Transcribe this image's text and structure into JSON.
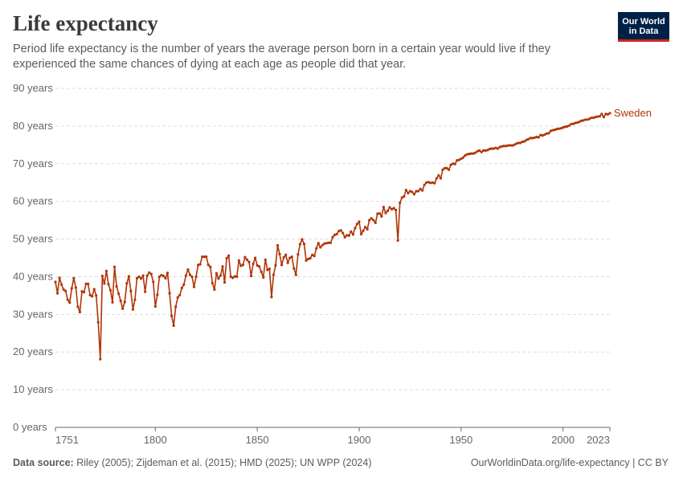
{
  "header": {
    "title": "Life expectancy",
    "subtitle": "Period life expectancy is the number of years the average person born in a certain year would live if they experienced the same chances of dying at each age as people did that year.",
    "logo_line1": "Our World",
    "logo_line2": "in Data"
  },
  "footer": {
    "source_label": "Data source:",
    "source_text": "Riley (2005); Zijdeman et al. (2015); HMD (2025); UN WPP (2024)",
    "url_text": "OurWorldinData.org/life-expectancy | CC BY"
  },
  "colors": {
    "series": "#b13507",
    "grid": "#dddddd",
    "axis": "#666666"
  },
  "chart_data": {
    "type": "line",
    "title": "Life expectancy",
    "xlabel": "",
    "ylabel": "",
    "xlim": [
      1751,
      2023
    ],
    "ylim": [
      0,
      90
    ],
    "x_ticks": [
      1751,
      1800,
      1850,
      1900,
      1950,
      2000,
      2023
    ],
    "y_ticks": [
      {
        "value": 0,
        "label": "0 years"
      },
      {
        "value": 10,
        "label": "10 years"
      },
      {
        "value": 20,
        "label": "20 years"
      },
      {
        "value": 30,
        "label": "30 years"
      },
      {
        "value": 40,
        "label": "40 years"
      },
      {
        "value": 50,
        "label": "50 years"
      },
      {
        "value": 60,
        "label": "60 years"
      },
      {
        "value": 70,
        "label": "70 years"
      },
      {
        "value": 80,
        "label": "80 years"
      },
      {
        "value": 90,
        "label": "90 years"
      }
    ],
    "grid": true,
    "legend": "label at line end",
    "series": [
      {
        "name": "Sweden",
        "points": [
          [
            1751,
            38.6
          ],
          [
            1752,
            35.6
          ],
          [
            1753,
            39.7
          ],
          [
            1754,
            37.9
          ],
          [
            1755,
            36.6
          ],
          [
            1756,
            36.2
          ],
          [
            1757,
            33.9
          ],
          [
            1758,
            33.1
          ],
          [
            1759,
            36.9
          ],
          [
            1760,
            39.6
          ],
          [
            1761,
            37.1
          ],
          [
            1762,
            32.0
          ],
          [
            1763,
            30.6
          ],
          [
            1764,
            36.1
          ],
          [
            1765,
            35.9
          ],
          [
            1766,
            38.1
          ],
          [
            1767,
            38.1
          ],
          [
            1768,
            35.1
          ],
          [
            1769,
            34.8
          ],
          [
            1770,
            36.7
          ],
          [
            1771,
            35.0
          ],
          [
            1772,
            27.9
          ],
          [
            1773,
            18.1
          ],
          [
            1774,
            40.2
          ],
          [
            1775,
            38.2
          ],
          [
            1776,
            41.5
          ],
          [
            1777,
            38.0
          ],
          [
            1778,
            36.4
          ],
          [
            1779,
            33.2
          ],
          [
            1780,
            42.6
          ],
          [
            1781,
            37.4
          ],
          [
            1782,
            35.5
          ],
          [
            1783,
            33.6
          ],
          [
            1784,
            31.5
          ],
          [
            1785,
            33.3
          ],
          [
            1786,
            38.2
          ],
          [
            1787,
            40.1
          ],
          [
            1788,
            36.2
          ],
          [
            1789,
            31.3
          ],
          [
            1790,
            33.9
          ],
          [
            1791,
            39.6
          ],
          [
            1792,
            40.0
          ],
          [
            1793,
            39.5
          ],
          [
            1794,
            40.3
          ],
          [
            1795,
            36.0
          ],
          [
            1796,
            40.3
          ],
          [
            1797,
            41.1
          ],
          [
            1798,
            40.7
          ],
          [
            1799,
            38.6
          ],
          [
            1800,
            32.1
          ],
          [
            1801,
            35.2
          ],
          [
            1802,
            40.0
          ],
          [
            1803,
            40.4
          ],
          [
            1804,
            40.2
          ],
          [
            1805,
            39.6
          ],
          [
            1806,
            41.0
          ],
          [
            1807,
            35.6
          ],
          [
            1808,
            29.6
          ],
          [
            1809,
            27.0
          ],
          [
            1810,
            32.0
          ],
          [
            1811,
            34.5
          ],
          [
            1812,
            35.1
          ],
          [
            1813,
            37.0
          ],
          [
            1814,
            37.9
          ],
          [
            1815,
            40.3
          ],
          [
            1816,
            41.9
          ],
          [
            1817,
            40.5
          ],
          [
            1818,
            40.0
          ],
          [
            1819,
            37.3
          ],
          [
            1820,
            40.0
          ],
          [
            1821,
            43.1
          ],
          [
            1822,
            43.3
          ],
          [
            1823,
            45.3
          ],
          [
            1824,
            45.3
          ],
          [
            1825,
            45.3
          ],
          [
            1826,
            43.1
          ],
          [
            1827,
            42.6
          ],
          [
            1828,
            38.3
          ],
          [
            1829,
            36.6
          ],
          [
            1830,
            40.9
          ],
          [
            1831,
            39.5
          ],
          [
            1832,
            40.3
          ],
          [
            1833,
            42.7
          ],
          [
            1834,
            38.5
          ],
          [
            1835,
            44.9
          ],
          [
            1836,
            45.6
          ],
          [
            1837,
            40.0
          ],
          [
            1838,
            39.7
          ],
          [
            1839,
            40.1
          ],
          [
            1840,
            40.0
          ],
          [
            1841,
            44.3
          ],
          [
            1842,
            42.9
          ],
          [
            1843,
            43.1
          ],
          [
            1844,
            45.2
          ],
          [
            1845,
            44.5
          ],
          [
            1846,
            43.9
          ],
          [
            1847,
            40.2
          ],
          [
            1848,
            43.4
          ],
          [
            1849,
            45.0
          ],
          [
            1850,
            43.0
          ],
          [
            1851,
            42.7
          ],
          [
            1852,
            41.3
          ],
          [
            1853,
            39.8
          ],
          [
            1854,
            44.5
          ],
          [
            1855,
            41.8
          ],
          [
            1856,
            42.1
          ],
          [
            1857,
            34.6
          ],
          [
            1858,
            40.5
          ],
          [
            1859,
            43.0
          ],
          [
            1860,
            48.3
          ],
          [
            1861,
            46.0
          ],
          [
            1862,
            43.1
          ],
          [
            1863,
            45.1
          ],
          [
            1864,
            45.8
          ],
          [
            1865,
            43.7
          ],
          [
            1866,
            45.0
          ],
          [
            1867,
            45.3
          ],
          [
            1868,
            42.2
          ],
          [
            1869,
            40.5
          ],
          [
            1870,
            45.9
          ],
          [
            1871,
            48.6
          ],
          [
            1872,
            49.9
          ],
          [
            1873,
            48.7
          ],
          [
            1874,
            44.3
          ],
          [
            1875,
            44.7
          ],
          [
            1876,
            44.9
          ],
          [
            1877,
            45.8
          ],
          [
            1878,
            45.5
          ],
          [
            1879,
            47.5
          ],
          [
            1880,
            48.9
          ],
          [
            1881,
            47.8
          ],
          [
            1882,
            48.4
          ],
          [
            1883,
            48.8
          ],
          [
            1884,
            48.9
          ],
          [
            1885,
            49.0
          ],
          [
            1886,
            49.0
          ],
          [
            1887,
            50.5
          ],
          [
            1888,
            51.1
          ],
          [
            1889,
            51.3
          ],
          [
            1890,
            52.1
          ],
          [
            1891,
            52.3
          ],
          [
            1892,
            51.6
          ],
          [
            1893,
            50.5
          ],
          [
            1894,
            51.0
          ],
          [
            1895,
            50.9
          ],
          [
            1896,
            52.0
          ],
          [
            1897,
            51.2
          ],
          [
            1898,
            52.9
          ],
          [
            1899,
            54.0
          ],
          [
            1900,
            54.6
          ],
          [
            1901,
            51.3
          ],
          [
            1902,
            52.2
          ],
          [
            1903,
            53.2
          ],
          [
            1904,
            52.6
          ],
          [
            1905,
            55.0
          ],
          [
            1906,
            55.5
          ],
          [
            1907,
            55.0
          ],
          [
            1908,
            54.3
          ],
          [
            1909,
            56.7
          ],
          [
            1910,
            56.8
          ],
          [
            1911,
            56.0
          ],
          [
            1912,
            58.5
          ],
          [
            1913,
            56.9
          ],
          [
            1914,
            57.5
          ],
          [
            1915,
            58.4
          ],
          [
            1916,
            57.9
          ],
          [
            1917,
            58.2
          ],
          [
            1918,
            57.7
          ],
          [
            1919,
            49.6
          ],
          [
            1920,
            59.6
          ],
          [
            1921,
            61.0
          ],
          [
            1922,
            61.3
          ],
          [
            1923,
            63.0
          ],
          [
            1924,
            62.2
          ],
          [
            1925,
            62.7
          ],
          [
            1926,
            62.5
          ],
          [
            1927,
            61.9
          ],
          [
            1928,
            62.7
          ],
          [
            1929,
            62.7
          ],
          [
            1930,
            63.3
          ],
          [
            1931,
            62.9
          ],
          [
            1932,
            64.4
          ],
          [
            1933,
            65.0
          ],
          [
            1934,
            65.1
          ],
          [
            1935,
            64.9
          ],
          [
            1936,
            65.0
          ],
          [
            1937,
            64.8
          ],
          [
            1938,
            66.1
          ],
          [
            1939,
            66.9
          ],
          [
            1940,
            66.1
          ],
          [
            1941,
            68.4
          ],
          [
            1942,
            68.8
          ],
          [
            1943,
            68.8
          ],
          [
            1944,
            68.4
          ],
          [
            1945,
            69.7
          ],
          [
            1946,
            70.0
          ],
          [
            1947,
            69.9
          ],
          [
            1948,
            70.9
          ],
          [
            1949,
            71.0
          ],
          [
            1950,
            71.3
          ],
          [
            1951,
            71.6
          ],
          [
            1952,
            72.2
          ],
          [
            1953,
            72.5
          ],
          [
            1954,
            72.6
          ],
          [
            1955,
            72.7
          ],
          [
            1956,
            72.7
          ],
          [
            1957,
            72.9
          ],
          [
            1958,
            73.3
          ],
          [
            1959,
            73.5
          ],
          [
            1960,
            73.1
          ],
          [
            1961,
            73.5
          ],
          [
            1962,
            73.5
          ],
          [
            1963,
            73.6
          ],
          [
            1964,
            73.9
          ],
          [
            1965,
            74.0
          ],
          [
            1966,
            74.0
          ],
          [
            1967,
            74.2
          ],
          [
            1968,
            74.0
          ],
          [
            1969,
            74.4
          ],
          [
            1970,
            74.6
          ],
          [
            1971,
            74.7
          ],
          [
            1972,
            74.7
          ],
          [
            1973,
            74.8
          ],
          [
            1974,
            74.9
          ],
          [
            1975,
            74.8
          ],
          [
            1976,
            75.0
          ],
          [
            1977,
            75.3
          ],
          [
            1978,
            75.5
          ],
          [
            1979,
            75.5
          ],
          [
            1980,
            75.8
          ],
          [
            1981,
            75.9
          ],
          [
            1982,
            76.3
          ],
          [
            1983,
            76.5
          ],
          [
            1984,
            76.8
          ],
          [
            1985,
            76.8
          ],
          [
            1986,
            76.9
          ],
          [
            1987,
            77.1
          ],
          [
            1988,
            77.0
          ],
          [
            1989,
            77.6
          ],
          [
            1990,
            77.5
          ],
          [
            1991,
            77.7
          ],
          [
            1992,
            78.0
          ],
          [
            1993,
            78.1
          ],
          [
            1994,
            78.7
          ],
          [
            1995,
            78.9
          ],
          [
            1996,
            79.0
          ],
          [
            1997,
            79.2
          ],
          [
            1998,
            79.3
          ],
          [
            1999,
            79.4
          ],
          [
            2000,
            79.6
          ],
          [
            2001,
            79.8
          ],
          [
            2002,
            79.9
          ],
          [
            2003,
            80.1
          ],
          [
            2004,
            80.5
          ],
          [
            2005,
            80.6
          ],
          [
            2006,
            80.8
          ],
          [
            2007,
            80.9
          ],
          [
            2008,
            81.1
          ],
          [
            2009,
            81.4
          ],
          [
            2010,
            81.5
          ],
          [
            2011,
            81.7
          ],
          [
            2012,
            81.7
          ],
          [
            2013,
            81.9
          ],
          [
            2014,
            82.2
          ],
          [
            2015,
            82.2
          ],
          [
            2016,
            82.4
          ],
          [
            2017,
            82.5
          ],
          [
            2018,
            82.6
          ],
          [
            2019,
            83.2
          ],
          [
            2020,
            82.4
          ],
          [
            2021,
            83.2
          ],
          [
            2022,
            83.1
          ],
          [
            2023,
            83.4
          ]
        ]
      }
    ]
  }
}
